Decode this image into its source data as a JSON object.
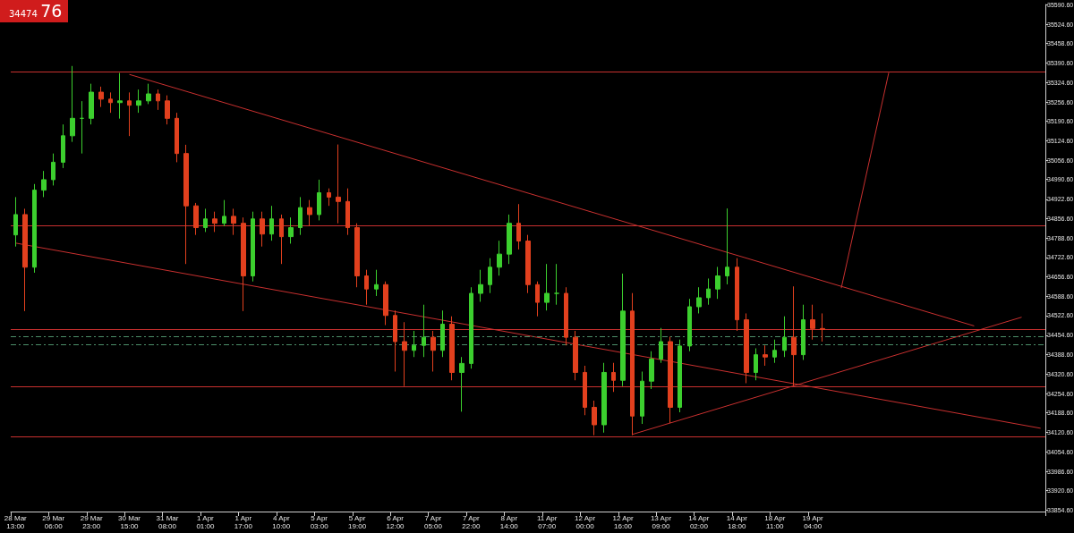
{
  "chart_data": {
    "type": "candlestick",
    "annotations": [
      "34474 76"
    ],
    "categories": [
      "28 Mar 13:00",
      null,
      null,
      null,
      "29 Mar 06:00",
      null,
      null,
      null,
      "29 Mar 23:00",
      null,
      null,
      null,
      "30 Mar 15:00",
      null,
      null,
      null,
      "31 Mar 08:00",
      null,
      null,
      null,
      "1 Apr 01:00",
      null,
      null,
      null,
      "1 Apr 17:00",
      null,
      null,
      null,
      "4 Apr 10:00",
      null,
      null,
      null,
      "5 Apr 03:00",
      null,
      null,
      null,
      "5 Apr 19:00",
      null,
      null,
      null,
      "6 Apr 12:00",
      null,
      null,
      null,
      "7 Apr 05:00",
      null,
      null,
      null,
      "7 Apr 22:00",
      null,
      null,
      null,
      "8 Apr 14:00",
      null,
      null,
      null,
      "11 Apr 07:00",
      null,
      null,
      null,
      "12 Apr 00:00",
      null,
      null,
      null,
      "12 Apr 16:00",
      null,
      null,
      null,
      "13 Apr 09:00",
      null,
      null,
      null,
      "14 Apr 02:00",
      null,
      null,
      null,
      "14 Apr 18:00",
      null,
      null,
      null,
      "18 Apr 11:00",
      null,
      null,
      null,
      "19 Apr 04:00",
      null,
      null,
      null,
      null,
      null,
      null,
      null,
      null,
      null,
      null,
      null,
      null,
      null,
      null,
      null,
      null,
      null,
      null,
      null,
      null,
      null,
      null,
      null,
      null
    ],
    "ohlc": [
      [
        34800,
        34930,
        34760,
        34870
      ],
      [
        34870,
        34890,
        34538,
        34689
      ],
      [
        34689,
        34975,
        34670,
        34954
      ],
      [
        34954,
        35020,
        34930,
        34990
      ],
      [
        34990,
        35080,
        34970,
        35050
      ],
      [
        35050,
        35180,
        35030,
        35141
      ],
      [
        35141,
        35381,
        35120,
        35201
      ],
      [
        35201,
        35260,
        35080,
        35201
      ],
      [
        35201,
        35320,
        35180,
        35291
      ],
      [
        35291,
        35310,
        35240,
        35267
      ],
      [
        35267,
        35290,
        35220,
        35255
      ],
      [
        35255,
        35357,
        35200,
        35261
      ],
      [
        35261,
        35290,
        35140,
        35246
      ],
      [
        35246,
        35300,
        35220,
        35261
      ],
      [
        35261,
        35320,
        35250,
        35285
      ],
      [
        35285,
        35300,
        35230,
        35261
      ],
      [
        35261,
        35280,
        35180,
        35201
      ],
      [
        35201,
        35220,
        35050,
        35080
      ],
      [
        35080,
        35110,
        34700,
        34900
      ],
      [
        34900,
        34910,
        34800,
        34825
      ],
      [
        34825,
        34890,
        34810,
        34855
      ],
      [
        34855,
        34880,
        34810,
        34840
      ],
      [
        34840,
        34920,
        34830,
        34864
      ],
      [
        34864,
        34890,
        34800,
        34840
      ],
      [
        34840,
        34860,
        34538,
        34659
      ],
      [
        34659,
        34880,
        34640,
        34855
      ],
      [
        34855,
        34880,
        34760,
        34803
      ],
      [
        34803,
        34900,
        34780,
        34855
      ],
      [
        34855,
        34870,
        34700,
        34794
      ],
      [
        34794,
        34860,
        34770,
        34825
      ],
      [
        34825,
        34930,
        34800,
        34894
      ],
      [
        34894,
        34920,
        34830,
        34870
      ],
      [
        34870,
        34990,
        34850,
        34945
      ],
      [
        34945,
        34960,
        34900,
        34930
      ],
      [
        34930,
        35111,
        34840,
        34915
      ],
      [
        34915,
        34960,
        34800,
        34825
      ],
      [
        34825,
        34840,
        34620,
        34659
      ],
      [
        34659,
        34680,
        34560,
        34614
      ],
      [
        34614,
        34680,
        34590,
        34629
      ],
      [
        34629,
        34640,
        34490,
        34523
      ],
      [
        34523,
        34540,
        34330,
        34433
      ],
      [
        34433,
        34500,
        34280,
        34403
      ],
      [
        34403,
        34470,
        34380,
        34420
      ],
      [
        34420,
        34560,
        34380,
        34448
      ],
      [
        34448,
        34470,
        34330,
        34403
      ],
      [
        34403,
        34540,
        34380,
        34493
      ],
      [
        34493,
        34520,
        34300,
        34327
      ],
      [
        34327,
        34380,
        34192,
        34358
      ],
      [
        34358,
        34620,
        34340,
        34599
      ],
      [
        34599,
        34680,
        34570,
        34629
      ],
      [
        34629,
        34720,
        34600,
        34689
      ],
      [
        34689,
        34780,
        34660,
        34734
      ],
      [
        34734,
        34870,
        34700,
        34840
      ],
      [
        34840,
        34906,
        34750,
        34779
      ],
      [
        34779,
        34800,
        34600,
        34629
      ],
      [
        34629,
        34640,
        34520,
        34568
      ],
      [
        34568,
        34700,
        34540,
        34599
      ],
      [
        34599,
        34700,
        34560,
        34599
      ],
      [
        34599,
        34620,
        34420,
        34448
      ],
      [
        34448,
        34470,
        34300,
        34327
      ],
      [
        34327,
        34350,
        34180,
        34207
      ],
      [
        34207,
        34230,
        34111,
        34147
      ],
      [
        34147,
        34360,
        34120,
        34327
      ],
      [
        34327,
        34360,
        34260,
        34300
      ],
      [
        34300,
        34667,
        34280,
        34538
      ],
      [
        34538,
        34600,
        34111,
        34177
      ],
      [
        34177,
        34330,
        34150,
        34297
      ],
      [
        34297,
        34400,
        34270,
        34373
      ],
      [
        34373,
        34480,
        34360,
        34433
      ],
      [
        34433,
        34450,
        34153,
        34207
      ],
      [
        34207,
        34440,
        34190,
        34418
      ],
      [
        34418,
        34580,
        34400,
        34553
      ],
      [
        34553,
        34620,
        34530,
        34584
      ],
      [
        34584,
        34650,
        34560,
        34614
      ],
      [
        34614,
        34690,
        34580,
        34659
      ],
      [
        34659,
        34891,
        34630,
        34689
      ],
      [
        34689,
        34720,
        34470,
        34508
      ],
      [
        34508,
        34530,
        34290,
        34327
      ],
      [
        34327,
        34410,
        34300,
        34388
      ],
      [
        34388,
        34420,
        34350,
        34380
      ],
      [
        34380,
        34440,
        34360,
        34403
      ],
      [
        34403,
        34520,
        34380,
        34448
      ],
      [
        34448,
        34623,
        34282,
        34388
      ],
      [
        34388,
        34560,
        34370,
        34508
      ],
      [
        34508,
        34560,
        34440,
        34478
      ],
      [
        34478,
        34530,
        34433,
        34475
      ],
      null,
      null,
      null,
      null,
      null,
      null,
      null,
      null,
      null,
      null,
      null,
      null,
      null,
      null,
      null,
      null,
      null,
      null,
      null,
      null,
      null,
      null,
      null
    ],
    "series": [
      {
        "type": "line",
        "color": "#c8302f",
        "values": [
          null,
          null,
          null,
          null,
          null,
          null,
          null,
          null,
          null,
          null,
          null,
          null,
          35352,
          null,
          null,
          null,
          null,
          null,
          null,
          null,
          null,
          null,
          null,
          null,
          null,
          null,
          null,
          null,
          null,
          null,
          null,
          null,
          null,
          null,
          null,
          null,
          null,
          null,
          null,
          null,
          null,
          null,
          null,
          null,
          null,
          null,
          null,
          null,
          null,
          null,
          null,
          null,
          null,
          null,
          null,
          null,
          null,
          null,
          null,
          null,
          null,
          null,
          null,
          null,
          null,
          null,
          null,
          null,
          null,
          null,
          null,
          null,
          null,
          null,
          null,
          null,
          null,
          null,
          null,
          null,
          null,
          null,
          null,
          null,
          null,
          null,
          null,
          null,
          null,
          null,
          null,
          null,
          null,
          null,
          null,
          null,
          null,
          null,
          null,
          null,
          null,
          34487,
          null,
          null,
          null,
          null,
          null,
          null,
          null
        ]
      },
      {
        "type": "line",
        "color": "#c8302f",
        "values": [
          34772,
          null,
          null,
          null,
          null,
          null,
          null,
          null,
          null,
          null,
          null,
          null,
          null,
          null,
          null,
          null,
          null,
          null,
          null,
          null,
          null,
          null,
          null,
          null,
          null,
          null,
          null,
          null,
          null,
          null,
          null,
          null,
          null,
          null,
          null,
          null,
          null,
          null,
          null,
          null,
          null,
          null,
          null,
          null,
          null,
          null,
          null,
          null,
          null,
          null,
          null,
          null,
          null,
          null,
          null,
          null,
          null,
          null,
          null,
          null,
          null,
          null,
          null,
          null,
          null,
          null,
          null,
          null,
          null,
          null,
          null,
          null,
          null,
          null,
          null,
          null,
          null,
          null,
          null,
          null,
          null,
          null,
          null,
          null,
          null,
          null,
          null,
          null,
          null,
          null,
          null,
          null,
          null,
          null,
          null,
          null,
          null,
          null,
          null,
          null,
          null,
          null,
          null,
          null,
          null,
          null,
          null,
          null,
          34135
        ]
      },
      {
        "type": "line",
        "color": "#c8302f",
        "values": [
          null,
          null,
          null,
          null,
          null,
          null,
          null,
          null,
          null,
          null,
          null,
          null,
          null,
          null,
          null,
          null,
          null,
          null,
          null,
          null,
          null,
          null,
          null,
          null,
          null,
          null,
          null,
          null,
          null,
          null,
          null,
          null,
          null,
          null,
          null,
          null,
          null,
          null,
          null,
          null,
          null,
          null,
          null,
          null,
          null,
          null,
          null,
          null,
          null,
          null,
          null,
          null,
          null,
          null,
          null,
          null,
          null,
          null,
          null,
          null,
          null,
          null,
          null,
          null,
          null,
          34114,
          null,
          null,
          null,
          null,
          null,
          null,
          null,
          null,
          null,
          null,
          null,
          null,
          null,
          null,
          null,
          null,
          null,
          null,
          null,
          null,
          null,
          null,
          null,
          null,
          null,
          null,
          null,
          null,
          null,
          null,
          null,
          null,
          null,
          null,
          null,
          null,
          null,
          null,
          null,
          null,
          34517,
          null,
          null
        ]
      },
      {
        "type": "line",
        "color": "#c8302f",
        "values": [
          null,
          null,
          null,
          null,
          null,
          null,
          null,
          null,
          null,
          null,
          null,
          null,
          null,
          null,
          null,
          null,
          null,
          null,
          null,
          null,
          null,
          null,
          null,
          null,
          null,
          null,
          null,
          null,
          null,
          null,
          null,
          null,
          null,
          null,
          null,
          null,
          null,
          null,
          null,
          null,
          null,
          null,
          null,
          null,
          null,
          null,
          null,
          null,
          null,
          null,
          null,
          null,
          null,
          null,
          null,
          null,
          null,
          null,
          null,
          null,
          null,
          null,
          null,
          null,
          null,
          null,
          null,
          null,
          null,
          null,
          null,
          null,
          null,
          null,
          null,
          null,
          null,
          null,
          null,
          null,
          null,
          null,
          null,
          null,
          null,
          null,
          null,
          34617,
          null,
          null,
          null,
          null,
          35358,
          null,
          null,
          null,
          null,
          null,
          null,
          null,
          null,
          null,
          null,
          null,
          null,
          null,
          null,
          null,
          null
        ]
      }
    ],
    "ref_lines": [
      {
        "axis": "y",
        "value": 35360,
        "color": "#c8302f"
      },
      {
        "axis": "y",
        "value": 34833,
        "color": "#c8302f"
      },
      {
        "axis": "y",
        "value": 34475,
        "color": "#c8302f"
      },
      {
        "axis": "y",
        "value": 34451,
        "color": "#4d8f6a",
        "line_style": "dashed"
      },
      {
        "axis": "y",
        "value": 34424,
        "color": "#4d8f6a",
        "line_style": "dashed"
      },
      {
        "axis": "y",
        "value": 34279,
        "color": "#c8302f"
      },
      {
        "axis": "y",
        "value": 34105,
        "color": "#c8302f"
      }
    ],
    "ylim": [
      33848.6,
      35592.6
    ],
    "yticks": [
      {
        "value": 33854.6,
        "label": "33854.60"
      },
      {
        "value": 33920.6,
        "label": "33920.60"
      },
      {
        "value": 33986.6,
        "label": "33986.60"
      },
      {
        "value": 34054.6,
        "label": "34054.60"
      },
      {
        "value": 34120.6,
        "label": "34120.60"
      },
      {
        "value": 34188.6,
        "label": "34188.60"
      },
      {
        "value": 34254.6,
        "label": "34254.60"
      },
      {
        "value": 34320.6,
        "label": "34320.60"
      },
      {
        "value": 34388.6,
        "label": "34388.60"
      },
      {
        "value": 34454.6,
        "label": "34454.60"
      },
      {
        "value": 34522.6,
        "label": "34522.60"
      },
      {
        "value": 34588.6,
        "label": "34588.60"
      },
      {
        "value": 34656.6,
        "label": "34656.60"
      },
      {
        "value": 34722.6,
        "label": "34722.60"
      },
      {
        "value": 34788.6,
        "label": "34788.60"
      },
      {
        "value": 34856.6,
        "label": "34856.60"
      },
      {
        "value": 34922.6,
        "label": "34922.60"
      },
      {
        "value": 34990.6,
        "label": "34990.60"
      },
      {
        "value": 35056.6,
        "label": "35056.60"
      },
      {
        "value": 35124.6,
        "label": "35124.60"
      },
      {
        "value": 35190.6,
        "label": "35190.60"
      },
      {
        "value": 35256.6,
        "label": "35256.60"
      },
      {
        "value": 35324.6,
        "label": "35324.60"
      },
      {
        "value": 35390.6,
        "label": "35390.60"
      },
      {
        "value": 35458.6,
        "label": "35458.60"
      },
      {
        "value": 35524.6,
        "label": "35524.60"
      },
      {
        "value": 35590.6,
        "label": "35590.60"
      }
    ],
    "grid": false,
    "marker": "none"
  }
}
